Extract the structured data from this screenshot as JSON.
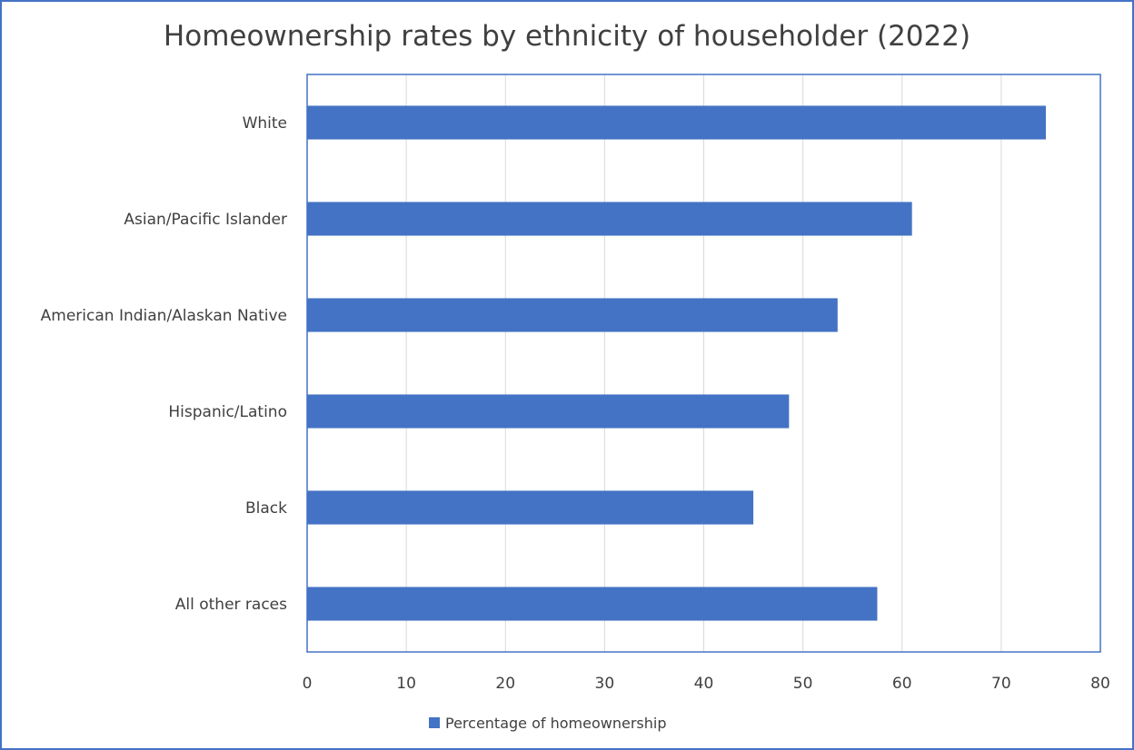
{
  "chart_data": {
    "type": "bar",
    "orientation": "horizontal",
    "title": "Homeownership rates by ethnicity of householder (2022)",
    "categories": [
      "White",
      "Asian/Pacific Islander",
      "American Indian/Alaskan Native",
      "Hispanic/Latino",
      "Black",
      "All other races"
    ],
    "series": [
      {
        "name": "Percentage of homeownership",
        "values": [
          74.5,
          61.0,
          53.5,
          48.6,
          45.0,
          57.5
        ],
        "color": "#4472c4"
      }
    ],
    "xlim": [
      0,
      80
    ],
    "x_ticks": [
      "0",
      "10",
      "20",
      "30",
      "40",
      "50",
      "60",
      "70",
      "80"
    ],
    "grid": "vertical",
    "legend_position": "bottom",
    "colors": {
      "bar": "#4472c4",
      "frame": "#4472c4",
      "plot_border": "#4472c4",
      "gridline": "#d9d9d9",
      "text": "#404040"
    }
  }
}
